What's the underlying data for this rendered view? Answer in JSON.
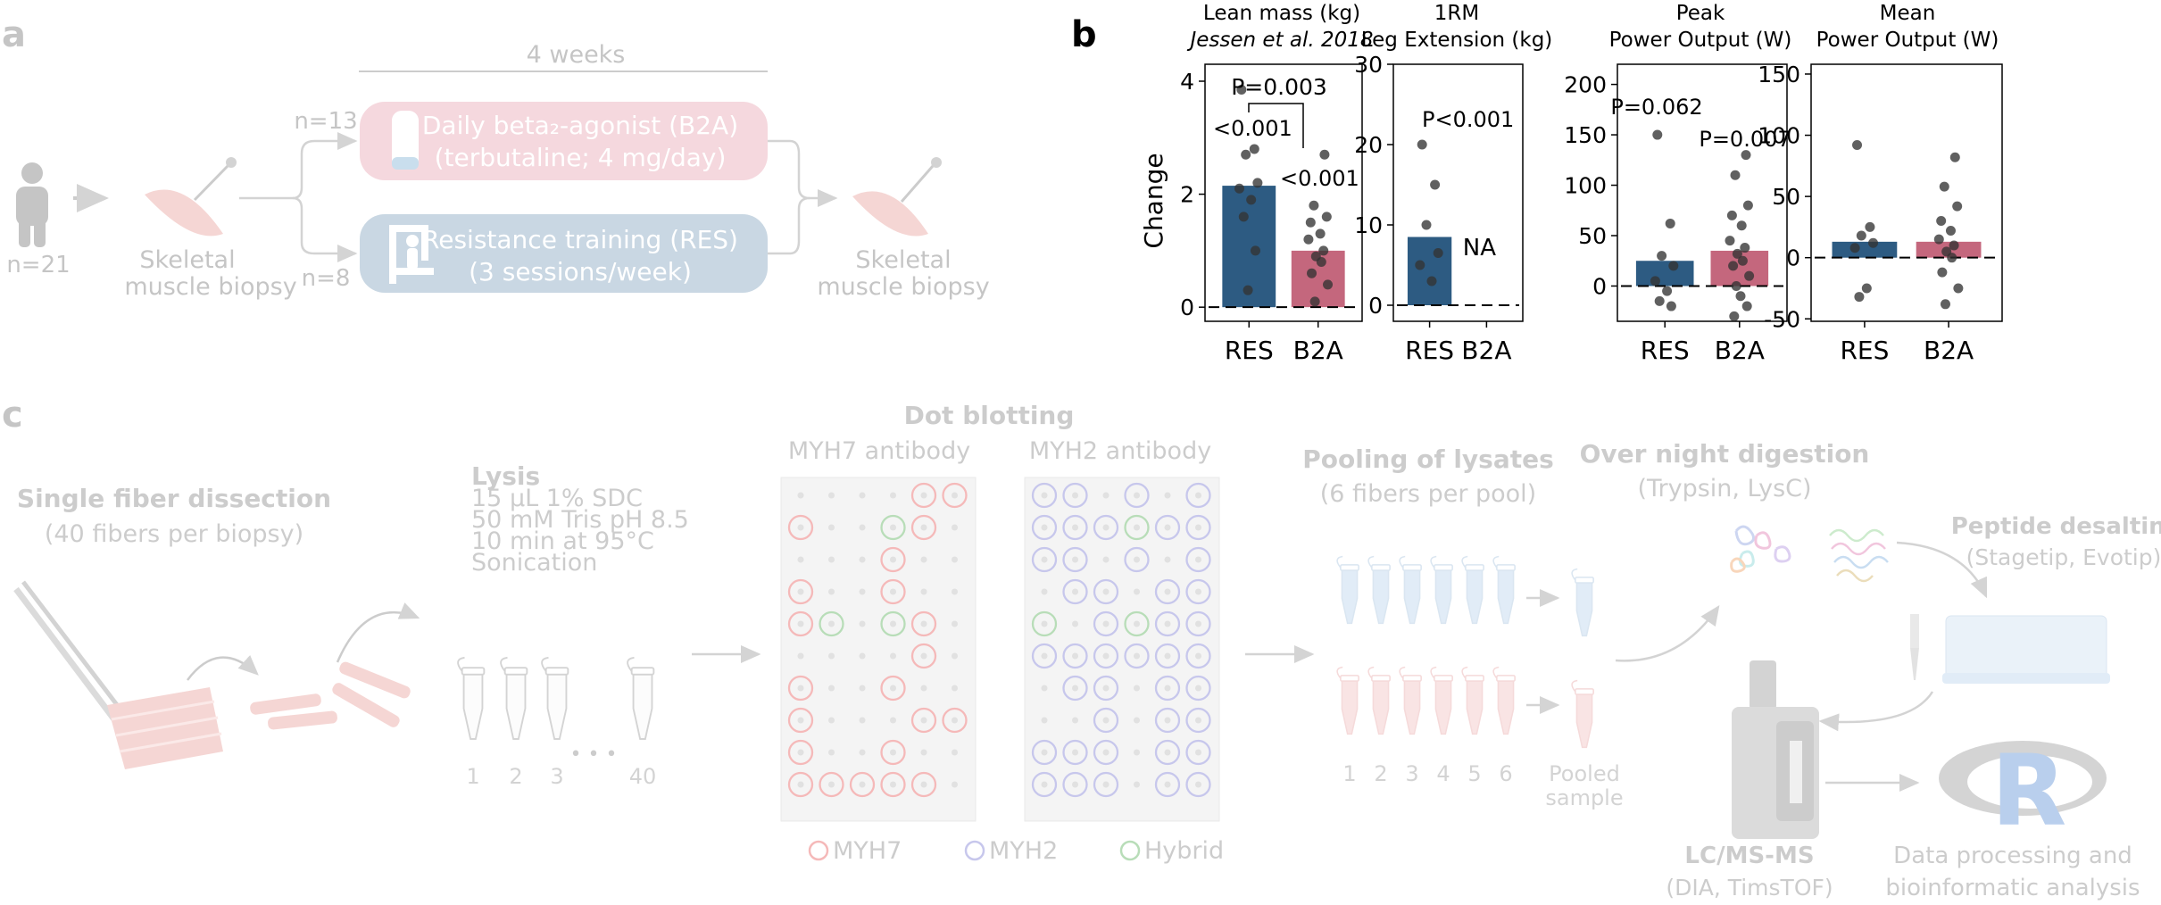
{
  "panel_a": {
    "letter": "a",
    "duration": "4 weeks",
    "n_total": "n=21",
    "n_b2a": "n=13",
    "n_res": "n=8",
    "biopsy_pre": [
      "Skeletal",
      "muscle biopsy"
    ],
    "biopsy_post": [
      "Skeletal",
      "muscle biopsy"
    ],
    "b2a_arm": [
      "Daily beta₂-agonist (B2A)",
      "(terbutaline; 4 mg/day)"
    ],
    "res_arm": [
      "Resistance training (RES)",
      "(3 sessions/week)"
    ],
    "colors": {
      "b2a": "#e8a3b1",
      "res": "#7fa1bd",
      "grey": "#999999",
      "muscle": "#e9a09a"
    }
  },
  "panel_b": {
    "letter": "b",
    "y_axis_label": "Change"
  },
  "chart_data": [
    {
      "type": "bar",
      "title": [
        "Lean mass (kg)",
        "Jessen et al. 2018"
      ],
      "categories": [
        "RES",
        "B2A"
      ],
      "values": [
        2.15,
        1.0
      ],
      "points": [
        [
          3.85,
          2.8,
          2.7,
          2.2,
          2.1,
          1.9,
          1.6,
          1.0,
          0.3
        ],
        [
          2.7,
          1.8,
          1.6,
          1.5,
          1.3,
          1.2,
          1.0,
          0.9,
          0.8,
          0.6,
          0.4,
          0.1
        ]
      ],
      "ylim": [
        -0.25,
        4.3
      ],
      "yticks": [
        0,
        2,
        4
      ],
      "annotations": {
        "res": "<0.001",
        "b2a": "<0.001",
        "between": "P=0.003"
      }
    },
    {
      "type": "bar",
      "title": [
        "1RM",
        "Leg Extension (kg)"
      ],
      "categories": [
        "RES",
        "B2A"
      ],
      "values": [
        8.5,
        null
      ],
      "points": [
        [
          20,
          15,
          10,
          6.5,
          5,
          3
        ],
        []
      ],
      "ylim": [
        -2,
        30
      ],
      "yticks": [
        0,
        10,
        20,
        30
      ],
      "annotations": {
        "res": "P<0.001",
        "b2a": "NA"
      }
    },
    {
      "type": "bar",
      "title": [
        "Peak",
        "Power Output (W)"
      ],
      "categories": [
        "RES",
        "B2A"
      ],
      "values": [
        25,
        35
      ],
      "points": [
        [
          150,
          62,
          30,
          20,
          5,
          -5,
          -15,
          -20
        ],
        [
          130,
          110,
          80,
          70,
          60,
          45,
          38,
          32,
          25,
          20,
          10,
          0,
          -10,
          -20,
          -30
        ]
      ],
      "ylim": [
        -35,
        220
      ],
      "yticks": [
        0,
        50,
        100,
        150,
        200
      ],
      "annotations": {
        "res": "P=0.062",
        "b2a": "P=0.007"
      }
    },
    {
      "type": "bar",
      "title": [
        "Mean",
        "Power Output (W)"
      ],
      "categories": [
        "RES",
        "B2A"
      ],
      "values": [
        13,
        13
      ],
      "points": [
        [
          92,
          25,
          18,
          12,
          8,
          -25,
          -32
        ],
        [
          82,
          58,
          42,
          30,
          22,
          15,
          10,
          5,
          0,
          -12,
          -25,
          -38
        ]
      ],
      "ylim": [
        -52,
        158
      ],
      "yticks": [
        -50,
        0,
        50,
        100,
        150
      ],
      "annotations": {}
    }
  ],
  "panel_c": {
    "letter": "c",
    "dissection_title": "Single fiber dissection",
    "dissection_sub": "(40 fibers per biopsy)",
    "lysis_title": "Lysis",
    "lysis_steps": [
      "15 µL 1% SDC",
      "50 mM Tris pH 8.5",
      "10 min at 95°C",
      "Sonication"
    ],
    "tube_labels": [
      "1",
      "2",
      "3",
      "40"
    ],
    "ellipsis": "• • •",
    "dot_title": "Dot blotting",
    "myh7_antibody": "MYH7 antibody",
    "myh2_antibody": "MYH2 antibody",
    "legend": [
      "MYH7",
      "MYH2",
      "Hybrid"
    ],
    "pooling_title": "Pooling of lysates",
    "pooling_sub": "(6 fibers per pool)",
    "pool_numbers": [
      "1",
      "2",
      "3",
      "4",
      "5",
      "6"
    ],
    "pooled_label": [
      "Pooled",
      "sample"
    ],
    "digestion_title": "Over night digestion",
    "digestion_sub": "(Trypsin, LysC)",
    "desalting_title": "Peptide desalting",
    "desalting_sub": "(Stagetip, Evotip)",
    "lcms_title": "LC/MS-MS",
    "lcms_sub": "(DIA, TimsTOF)",
    "analysis_lines": [
      "Data processing and",
      "bioinformatic analysis"
    ],
    "r_logo": "R",
    "colors": {
      "myh7": "#e85b5b",
      "myh2": "#7b7bd4",
      "hybrid": "#58b058",
      "blue_tube": "#b9d3ee",
      "red_tube": "#f3c1c1"
    }
  }
}
